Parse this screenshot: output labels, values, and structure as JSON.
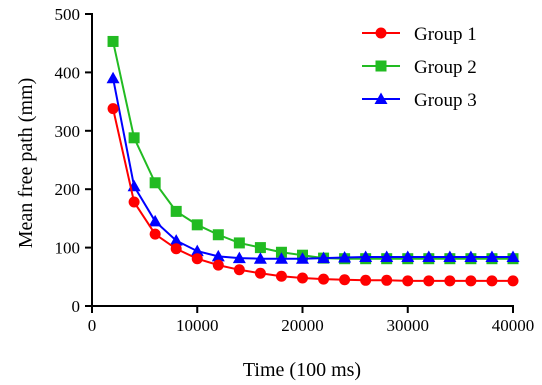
{
  "chart_data": {
    "type": "line",
    "title": "",
    "xlabel": "Time (100 ms)",
    "ylabel": "Mean free path (mm)",
    "xlim": [
      0,
      40000
    ],
    "ylim": [
      0,
      500
    ],
    "xticks": [
      0,
      10000,
      20000,
      30000,
      40000
    ],
    "yticks": [
      0,
      100,
      200,
      300,
      400,
      500
    ],
    "xtick_labels": [
      "0",
      "10000",
      "20000",
      "30000",
      "40000"
    ],
    "ytick_labels": [
      "0",
      "100",
      "200",
      "300",
      "400",
      "500"
    ],
    "grid": false,
    "legend_position": "top-right",
    "x": [
      2000,
      4000,
      6000,
      8000,
      10000,
      12000,
      14000,
      16000,
      18000,
      20000,
      22000,
      24000,
      26000,
      28000,
      30000,
      32000,
      34000,
      36000,
      38000,
      40000
    ],
    "series": [
      {
        "name": "Group 1",
        "color": "#ff0000",
        "marker": "circle",
        "values": [
          338,
          178,
          123,
          98,
          81,
          70,
          62,
          56,
          51,
          48,
          46,
          45,
          44,
          44,
          43,
          43,
          43,
          43,
          43,
          43
        ]
      },
      {
        "name": "Group 2",
        "color": "#22bb22",
        "marker": "square",
        "values": [
          453,
          288,
          211,
          162,
          139,
          122,
          108,
          100,
          92,
          87,
          82,
          81,
          81,
          81,
          81,
          81,
          81,
          81,
          81,
          81
        ]
      },
      {
        "name": "Group 3",
        "color": "#0000ff",
        "marker": "triangle",
        "values": [
          390,
          205,
          145,
          112,
          94,
          85,
          82,
          81,
          81,
          81,
          82,
          83,
          84,
          84,
          84,
          84,
          84,
          84,
          84,
          84
        ]
      }
    ]
  }
}
